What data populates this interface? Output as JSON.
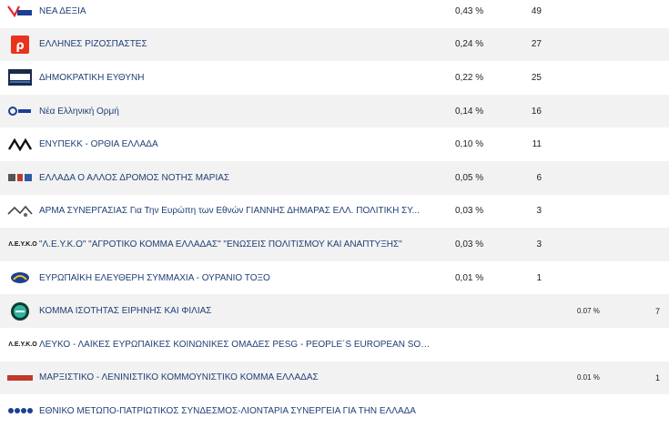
{
  "results": {
    "rows": [
      {
        "name": "ΝΕΑ ΔΕΞΙΑ",
        "logo": "nea-dexia-logo",
        "pct": "0,43 %",
        "count": "49",
        "pct2": "",
        "count2": ""
      },
      {
        "name": "ΕΛΛΗΝΕΣ ΡΙΖΟΣΠΑΣΤΕΣ",
        "logo": "ellines-rizospastes-logo",
        "pct": "0,24 %",
        "count": "27",
        "pct2": "",
        "count2": ""
      },
      {
        "name": "ΔΗΜΟΚΡΑΤΙΚΗ ΕΥΘΥΝΗ",
        "logo": "dimokratiki-efthyni-logo",
        "pct": "0,22 %",
        "count": "25",
        "pct2": "",
        "count2": ""
      },
      {
        "name": "Νέα Ελληνική Ορμή",
        "logo": "nea-elliniki-ormi-logo",
        "pct": "0,14 %",
        "count": "16",
        "pct2": "",
        "count2": ""
      },
      {
        "name": "ΕΝΥΠΕΚΚ - ΟΡΘΙΑ ΕΛΛΑΔΑ",
        "logo": "enypekk-logo",
        "pct": "0,10 %",
        "count": "11",
        "pct2": "",
        "count2": ""
      },
      {
        "name": "ΕΛΛΑΔΑ Ο ΑΛΛΟΣ ΔΡΟΜΟΣ ΝΟΤΗΣ ΜΑΡΙΑΣ",
        "logo": "ellada-allos-dromos-logo",
        "pct": "0,05 %",
        "count": "6",
        "pct2": "",
        "count2": ""
      },
      {
        "name": "ΑΡΜΑ ΣΥΝΕΡΓΑΣΙΑΣ Για Την Ευρώπη των Εθνών ΓΙΑΝΝΗΣ ΔΗΜΑΡΑΣ ΕΛΛ. ΠΟΛΙΤΙΚΗ ΣΥ...",
        "logo": "arma-synergasias-logo",
        "pct": "0,03 %",
        "count": "3",
        "pct2": "",
        "count2": ""
      },
      {
        "name": "\"Λ.Ε.Υ.Κ.Ο\" \"ΑΓΡΟΤΙΚΟ ΚΟΜΜΑ ΕΛΛΑΔΑΣ\" \"ΕΝΩΣΕΙΣ ΠΟΛΙΤΙΣΜΟΥ ΚΑΙ ΑΝΑΠΤΥΞΗΣ\"",
        "logo": "lefko-agrotiko-logo",
        "logo_text": "Λ.Ε.Υ.Κ.Ο",
        "pct": "0,03 %",
        "count": "3",
        "pct2": "",
        "count2": ""
      },
      {
        "name": "ΕΥΡΩΠΑΪΚΗ ΕΛΕΥΘΕΡΗ ΣΥΜΜΑΧΙΑ - ΟΥΡΑΝΙΟ ΤΟΞΟ",
        "logo": "ouranio-toxo-logo",
        "pct": "0,01 %",
        "count": "1",
        "pct2": "",
        "count2": ""
      },
      {
        "name": "ΚΟΜΜΑ ΙΣΟΤΗΤΑΣ ΕΙΡΗΝΗΣ ΚΑΙ ΦΙΛΙΑΣ",
        "logo": "komma-isotitas-logo",
        "pct": "",
        "count": "",
        "pct2": "0.07 %",
        "count2": "7"
      },
      {
        "name": "ΛΕΥΚΟ - ΛΑΪΚΕΣ ΕΥΡΩΠΑΪΚΕΣ ΚΟΙΝΩΝΙΚΕΣ ΟΜΑΔΕΣ PESG - PEOPLE´S EUROPEAN SOCIAL ...",
        "logo": "lefko-pesg-logo",
        "logo_text": "Λ.Ε.Υ.Κ.Ο",
        "pct": "",
        "count": "",
        "pct2": "",
        "count2": ""
      },
      {
        "name": "ΜΑΡΞΙΣΤΙΚΟ - ΛΕΝΙΝΙΣΤΙΚΟ ΚΟΜΜΟΥΝΙΣΤΙΚΟ ΚΟΜΜΑ ΕΛΛΑΔΑΣ",
        "logo": "m-l-kke-logo",
        "pct": "",
        "count": "",
        "pct2": "0.01 %",
        "count2": "1"
      },
      {
        "name": "ΕΘΝΙΚΟ ΜΕΤΩΠΟ-ΠΑΤΡΙΩΤΙΚΟΣ ΣΥΝΔΕΣΜΟΣ-ΛΙΟΝΤΑΡΙΑ ΣΥΝΕΡΓΕΙΑ ΓΙΑ ΤΗΝ ΕΛΛΑΔΑ",
        "logo": "ethniko-metopo-logo",
        "pct": "",
        "count": "",
        "pct2": "",
        "count2": ""
      }
    ]
  },
  "colors": {
    "text": "#1f3f75",
    "alt_row": "#f2f2f2",
    "nd_blue": "#1c3f94",
    "nd_red": "#e3262e",
    "el_red": "#e8331f"
  }
}
